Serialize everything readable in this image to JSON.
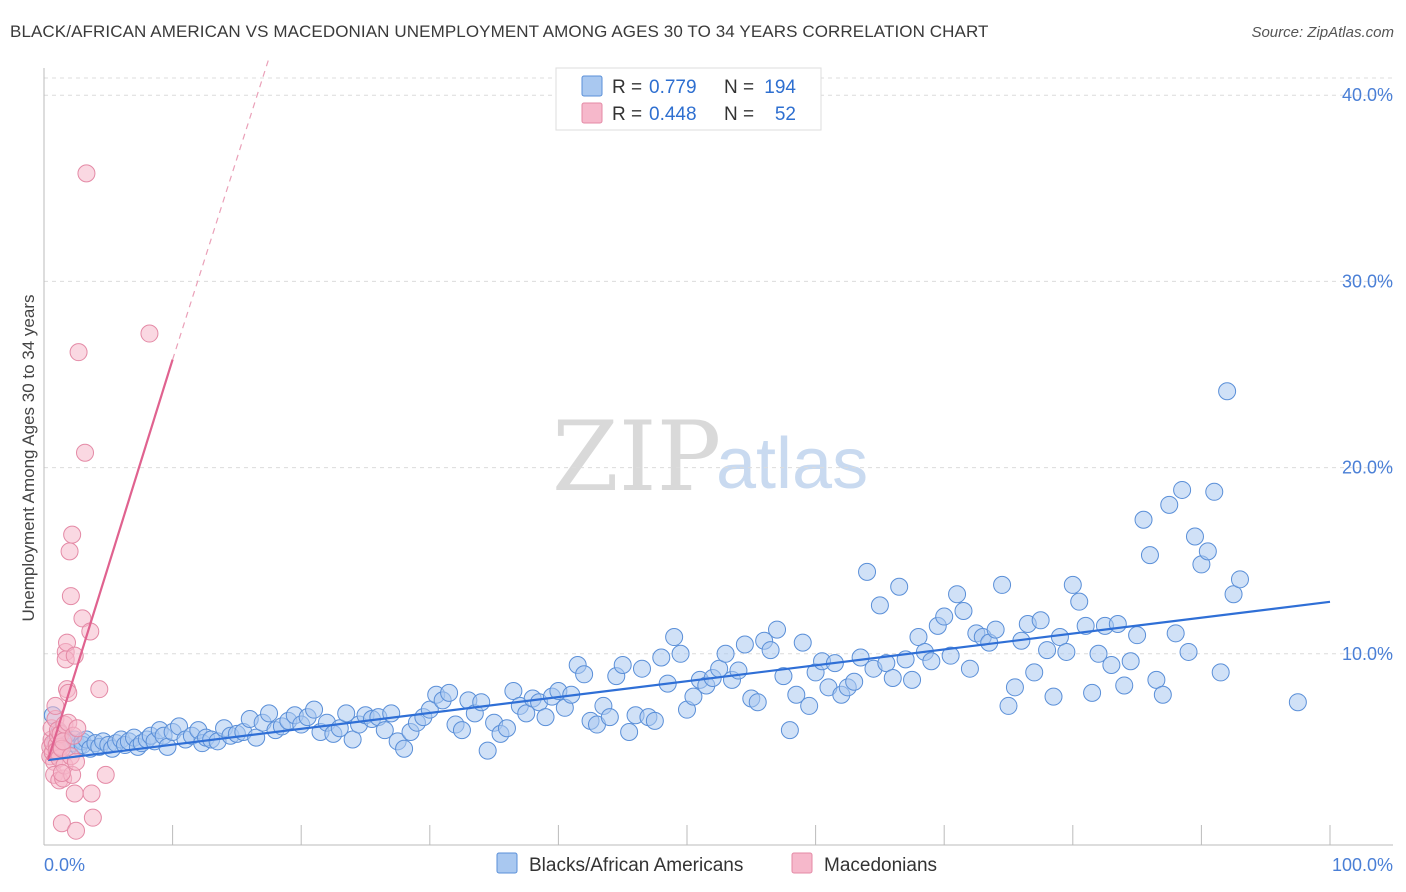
{
  "title": "BLACK/AFRICAN AMERICAN VS MACEDONIAN UNEMPLOYMENT AMONG AGES 30 TO 34 YEARS CORRELATION CHART",
  "source": "Source: ZipAtlas.com",
  "watermark": {
    "zip": "ZIP",
    "atlas": "atlas"
  },
  "legend_top": {
    "rows": [
      {
        "r_label": "R =",
        "r_value": "0.779",
        "n_label": "N =",
        "n_value": "194",
        "color": "#a9c8f0"
      },
      {
        "r_label": "R =",
        "r_value": "0.448",
        "n_label": "N =",
        "n_value": "52",
        "color": "#f6b8cb"
      }
    ]
  },
  "chart_data": {
    "type": "scatter",
    "title": "BLACK/AFRICAN AMERICAN VS MACEDONIAN UNEMPLOYMENT AMONG AGES 30 TO 34 YEARS CORRELATION CHART",
    "xlabel": "",
    "ylabel": "Unemployment Among Ages 30 to 34 years",
    "xlim": [
      0,
      100
    ],
    "ylim": [
      0,
      42
    ],
    "x_tick_labels": [
      "0.0%",
      "100.0%"
    ],
    "y_ticks": [
      10,
      20,
      30,
      40
    ],
    "y_tick_labels": [
      "10.0%",
      "20.0%",
      "30.0%",
      "40.0%"
    ],
    "grid": true,
    "legend_position": "bottom-center",
    "series": [
      {
        "name": "Blacks/African Americans",
        "color": "#a9c8f0",
        "stroke": "#5a8fd8",
        "trend": {
          "x": [
            0,
            100
          ],
          "y": [
            4.4,
            12.9
          ]
        },
        "points": [
          [
            0.3,
            6.7
          ],
          [
            0.5,
            5.3
          ],
          [
            0.8,
            5.8
          ],
          [
            1.0,
            5.1
          ],
          [
            1.2,
            5.5
          ],
          [
            1.5,
            5.0
          ],
          [
            1.8,
            5.2
          ],
          [
            2.0,
            5.4
          ],
          [
            2.3,
            5.0
          ],
          [
            2.6,
            5.3
          ],
          [
            3.0,
            5.1
          ],
          [
            3.3,
            5.4
          ],
          [
            3.6,
            4.9
          ],
          [
            4.0,
            5.2
          ],
          [
            4.3,
            5.0
          ],
          [
            4.6,
            5.3
          ],
          [
            5.0,
            5.1
          ],
          [
            5.3,
            4.9
          ],
          [
            5.6,
            5.2
          ],
          [
            6.0,
            5.4
          ],
          [
            6.3,
            5.1
          ],
          [
            6.6,
            5.3
          ],
          [
            7.0,
            5.5
          ],
          [
            7.3,
            5.0
          ],
          [
            7.6,
            5.2
          ],
          [
            8.0,
            5.4
          ],
          [
            8.3,
            5.6
          ],
          [
            8.6,
            5.3
          ],
          [
            9.0,
            5.9
          ],
          [
            9.3,
            5.6
          ],
          [
            9.6,
            5.0
          ],
          [
            10.0,
            5.8
          ],
          [
            10.5,
            6.1
          ],
          [
            11.0,
            5.4
          ],
          [
            11.5,
            5.6
          ],
          [
            12.0,
            5.9
          ],
          [
            12.3,
            5.2
          ],
          [
            12.6,
            5.5
          ],
          [
            13.0,
            5.4
          ],
          [
            13.5,
            5.3
          ],
          [
            14.0,
            6.0
          ],
          [
            14.5,
            5.6
          ],
          [
            15.0,
            5.7
          ],
          [
            15.5,
            5.8
          ],
          [
            16.0,
            6.5
          ],
          [
            16.5,
            5.5
          ],
          [
            17.0,
            6.3
          ],
          [
            17.5,
            6.8
          ],
          [
            18.0,
            5.9
          ],
          [
            18.5,
            6.1
          ],
          [
            19.0,
            6.4
          ],
          [
            19.5,
            6.7
          ],
          [
            20.0,
            6.2
          ],
          [
            20.5,
            6.6
          ],
          [
            21.0,
            7.0
          ],
          [
            21.5,
            5.8
          ],
          [
            22.0,
            6.3
          ],
          [
            22.5,
            5.7
          ],
          [
            23.0,
            6.0
          ],
          [
            23.5,
            6.8
          ],
          [
            24.0,
            5.4
          ],
          [
            24.5,
            6.2
          ],
          [
            25.0,
            6.7
          ],
          [
            25.5,
            6.5
          ],
          [
            26.0,
            6.6
          ],
          [
            26.5,
            5.9
          ],
          [
            27.0,
            6.8
          ],
          [
            27.5,
            5.3
          ],
          [
            28.0,
            4.9
          ],
          [
            28.5,
            5.8
          ],
          [
            29.0,
            6.3
          ],
          [
            29.5,
            6.6
          ],
          [
            30.0,
            7.0
          ],
          [
            30.5,
            7.8
          ],
          [
            31.0,
            7.5
          ],
          [
            31.5,
            7.9
          ],
          [
            32.0,
            6.2
          ],
          [
            32.5,
            5.9
          ],
          [
            33.0,
            7.5
          ],
          [
            33.5,
            6.8
          ],
          [
            34.0,
            7.4
          ],
          [
            34.5,
            4.8
          ],
          [
            35.0,
            6.3
          ],
          [
            35.5,
            5.7
          ],
          [
            36.0,
            6.0
          ],
          [
            36.5,
            8.0
          ],
          [
            37.0,
            7.2
          ],
          [
            37.5,
            6.8
          ],
          [
            38.0,
            7.6
          ],
          [
            38.5,
            7.4
          ],
          [
            39.0,
            6.6
          ],
          [
            39.5,
            7.7
          ],
          [
            40.0,
            8.0
          ],
          [
            40.5,
            7.1
          ],
          [
            41.0,
            7.8
          ],
          [
            41.5,
            9.4
          ],
          [
            42.0,
            8.9
          ],
          [
            42.5,
            6.4
          ],
          [
            43.0,
            6.2
          ],
          [
            43.5,
            7.2
          ],
          [
            44.0,
            6.6
          ],
          [
            44.5,
            8.8
          ],
          [
            45.0,
            9.4
          ],
          [
            45.5,
            5.8
          ],
          [
            46.0,
            6.7
          ],
          [
            46.5,
            9.2
          ],
          [
            47.0,
            6.6
          ],
          [
            47.5,
            6.4
          ],
          [
            48.0,
            9.8
          ],
          [
            48.5,
            8.4
          ],
          [
            49.0,
            10.9
          ],
          [
            49.5,
            10.0
          ],
          [
            50.0,
            7.0
          ],
          [
            50.5,
            7.7
          ],
          [
            51.0,
            8.6
          ],
          [
            51.5,
            8.3
          ],
          [
            52.0,
            8.7
          ],
          [
            52.5,
            9.2
          ],
          [
            53.0,
            10.0
          ],
          [
            53.5,
            8.6
          ],
          [
            54.0,
            9.1
          ],
          [
            54.5,
            10.5
          ],
          [
            55.0,
            7.6
          ],
          [
            55.5,
            7.4
          ],
          [
            56.0,
            10.7
          ],
          [
            56.5,
            10.2
          ],
          [
            57.0,
            11.3
          ],
          [
            57.5,
            8.8
          ],
          [
            58.0,
            5.9
          ],
          [
            58.5,
            7.8
          ],
          [
            59.0,
            10.6
          ],
          [
            59.5,
            7.2
          ],
          [
            60.0,
            9.0
          ],
          [
            60.5,
            9.6
          ],
          [
            61.0,
            8.2
          ],
          [
            61.5,
            9.5
          ],
          [
            62.0,
            7.8
          ],
          [
            62.5,
            8.2
          ],
          [
            63.0,
            8.5
          ],
          [
            63.5,
            9.8
          ],
          [
            64.0,
            14.4
          ],
          [
            64.5,
            9.2
          ],
          [
            65.0,
            12.6
          ],
          [
            65.5,
            9.5
          ],
          [
            66.0,
            8.7
          ],
          [
            66.5,
            13.6
          ],
          [
            67.0,
            9.7
          ],
          [
            67.5,
            8.6
          ],
          [
            68.0,
            10.9
          ],
          [
            68.5,
            10.1
          ],
          [
            69.0,
            9.6
          ],
          [
            69.5,
            11.5
          ],
          [
            70.0,
            12.0
          ],
          [
            70.5,
            9.9
          ],
          [
            71.0,
            13.2
          ],
          [
            71.5,
            12.3
          ],
          [
            72.0,
            9.2
          ],
          [
            72.5,
            11.1
          ],
          [
            73.0,
            10.9
          ],
          [
            73.5,
            10.6
          ],
          [
            74.0,
            11.3
          ],
          [
            74.5,
            13.7
          ],
          [
            75.0,
            7.2
          ],
          [
            75.5,
            8.2
          ],
          [
            76.0,
            10.7
          ],
          [
            76.5,
            11.6
          ],
          [
            77.0,
            9.0
          ],
          [
            77.5,
            11.8
          ],
          [
            78.0,
            10.2
          ],
          [
            78.5,
            7.7
          ],
          [
            79.0,
            10.9
          ],
          [
            79.5,
            10.1
          ],
          [
            80.0,
            13.7
          ],
          [
            80.5,
            12.8
          ],
          [
            81.0,
            11.5
          ],
          [
            81.5,
            7.9
          ],
          [
            82.0,
            10.0
          ],
          [
            82.5,
            11.5
          ],
          [
            83.0,
            9.4
          ],
          [
            83.5,
            11.6
          ],
          [
            84.0,
            8.3
          ],
          [
            84.5,
            9.6
          ],
          [
            85.0,
            11.0
          ],
          [
            85.5,
            17.2
          ],
          [
            86.0,
            15.3
          ],
          [
            86.5,
            8.6
          ],
          [
            87.0,
            7.8
          ],
          [
            87.5,
            18.0
          ],
          [
            88.0,
            11.1
          ],
          [
            88.5,
            18.8
          ],
          [
            89.0,
            10.1
          ],
          [
            89.5,
            16.3
          ],
          [
            90.0,
            14.8
          ],
          [
            90.5,
            15.5
          ],
          [
            91.0,
            18.7
          ],
          [
            91.5,
            9.0
          ],
          [
            92.0,
            24.1
          ],
          [
            92.5,
            13.2
          ],
          [
            93.0,
            14.0
          ],
          [
            97.5,
            7.4
          ]
        ]
      },
      {
        "name": "Macedonians",
        "color": "#f6b8cb",
        "stroke": "#e48aa6",
        "trend": {
          "x": [
            0,
            10
          ],
          "y": [
            4.3,
            25.8
          ]
        },
        "trend_extension": {
          "x": [
            10,
            17.5
          ],
          "y": [
            25.8,
            42
          ]
        },
        "points": [
          [
            0.1,
            4.5
          ],
          [
            0.1,
            5.0
          ],
          [
            0.2,
            5.4
          ],
          [
            0.2,
            6.0
          ],
          [
            0.3,
            4.7
          ],
          [
            0.3,
            5.2
          ],
          [
            0.4,
            4.2
          ],
          [
            0.4,
            3.5
          ],
          [
            0.5,
            6.5
          ],
          [
            0.5,
            7.2
          ],
          [
            0.6,
            5.1
          ],
          [
            0.6,
            4.8
          ],
          [
            0.7,
            5.6
          ],
          [
            0.7,
            5.9
          ],
          [
            0.8,
            4.4
          ],
          [
            0.8,
            3.2
          ],
          [
            0.9,
            5.0
          ],
          [
            0.9,
            5.7
          ],
          [
            1.0,
            0.9
          ],
          [
            1.0,
            4.9
          ],
          [
            1.1,
            3.3
          ],
          [
            1.1,
            5.3
          ],
          [
            1.2,
            6.2
          ],
          [
            1.2,
            4.0
          ],
          [
            1.3,
            10.1
          ],
          [
            1.3,
            9.7
          ],
          [
            1.4,
            10.6
          ],
          [
            1.4,
            8.1
          ],
          [
            1.5,
            7.9
          ],
          [
            1.5,
            6.3
          ],
          [
            1.6,
            15.5
          ],
          [
            1.7,
            13.1
          ],
          [
            1.7,
            4.5
          ],
          [
            1.8,
            16.4
          ],
          [
            1.8,
            3.5
          ],
          [
            1.9,
            5.6
          ],
          [
            2.0,
            9.9
          ],
          [
            2.0,
            2.5
          ],
          [
            2.1,
            4.2
          ],
          [
            2.1,
            0.5
          ],
          [
            2.2,
            6.0
          ],
          [
            2.6,
            11.9
          ],
          [
            2.8,
            20.8
          ],
          [
            3.3,
            35.8
          ],
          [
            3.6,
            11.2
          ],
          [
            3.7,
            2.5
          ],
          [
            3.8,
            1.2
          ],
          [
            4.3,
            8.1
          ],
          [
            4.8,
            3.5
          ],
          [
            8.2,
            27.2
          ],
          [
            2.3,
            26.2
          ],
          [
            1.0,
            3.6
          ]
        ]
      }
    ]
  }
}
